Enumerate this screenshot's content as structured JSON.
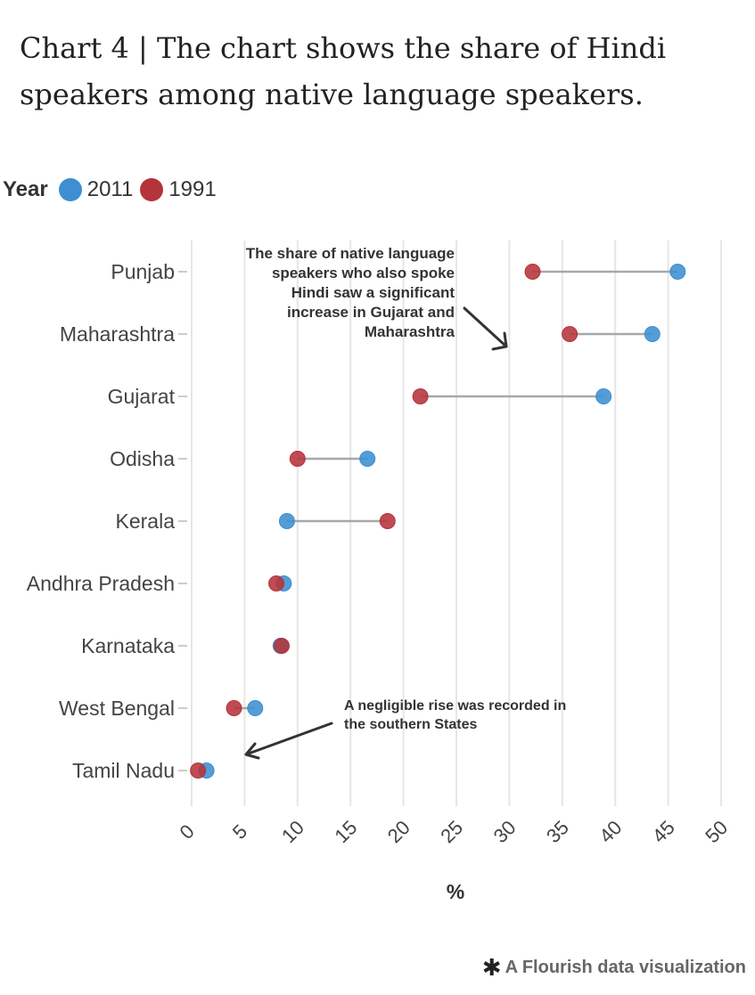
{
  "title": "Chart 4 | The chart shows the share of Hindi speakers among native language speakers.",
  "legend": {
    "title": "Year",
    "items": [
      {
        "label": "2011",
        "color": "#3d8fd1"
      },
      {
        "label": "1991",
        "color": "#b5333a"
      }
    ]
  },
  "annotations": [
    "The share of native language speakers who also spoke Hindi saw a significant increase in Gujarat and Maharashtra",
    "A negligible rise was recorded in the southern States"
  ],
  "credit": {
    "icon": "flourish-asterisk-icon",
    "text": "A Flourish data visualization"
  },
  "chart_data": {
    "type": "dot-plot",
    "title": "Chart 4 | The chart shows the share of Hindi speakers among native language speakers.",
    "xlabel": "%",
    "ylabel": "",
    "xlim": [
      0,
      50
    ],
    "xticks": [
      0,
      5,
      10,
      15,
      20,
      25,
      30,
      35,
      40,
      45,
      50
    ],
    "grid": true,
    "legend_position": "top-left",
    "categories": [
      "Punjab",
      "Maharashtra",
      "Gujarat",
      "Odisha",
      "Kerala",
      "Andhra Pradesh",
      "Karnataka",
      "West Bengal",
      "Tamil Nadu"
    ],
    "series": [
      {
        "name": "2011",
        "color": "#3d8fd1",
        "values": [
          45.9,
          43.5,
          38.9,
          16.6,
          9.0,
          8.7,
          8.4,
          6.0,
          1.4
        ]
      },
      {
        "name": "1991",
        "color": "#b5333a",
        "values": [
          32.2,
          35.7,
          21.6,
          10.0,
          18.5,
          8.0,
          8.5,
          4.0,
          0.6
        ]
      }
    ]
  }
}
